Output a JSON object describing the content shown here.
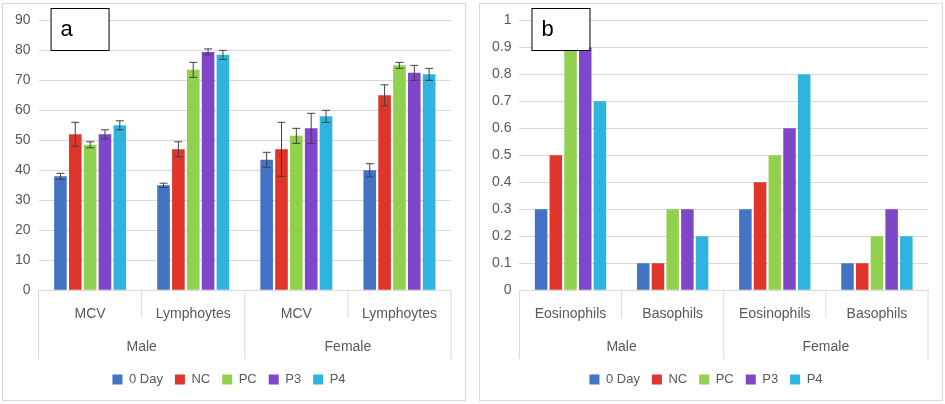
{
  "chart_data": [
    {
      "type": "bar",
      "title": "a",
      "categories": [
        "MCV",
        "Lymphoytes",
        "MCV",
        "Lymphoytes"
      ],
      "groups": [
        "Male",
        "Male",
        "Female",
        "Female"
      ],
      "series": [
        {
          "name": "0 Day",
          "color": "#4472c4",
          "values": [
            38,
            35,
            43.5,
            40
          ],
          "errors": [
            1,
            0.7,
            2.5,
            2.2
          ]
        },
        {
          "name": "NC",
          "color": "#e0352b",
          "values": [
            52,
            47,
            47,
            65
          ],
          "errors": [
            4,
            2.5,
            9,
            3.5
          ]
        },
        {
          "name": "PC",
          "color": "#92d050",
          "values": [
            48.5,
            73.5,
            51.5,
            75
          ],
          "errors": [
            1,
            2.5,
            2.5,
            1
          ]
        },
        {
          "name": "P3",
          "color": "#7e47c9",
          "values": [
            52,
            79.5,
            54,
            72.5
          ],
          "errors": [
            1.5,
            1,
            5,
            2.5
          ]
        },
        {
          "name": "P4",
          "color": "#2fb4e0",
          "values": [
            55,
            78.5,
            58,
            72
          ],
          "errors": [
            1.5,
            1.5,
            2,
            2
          ]
        }
      ],
      "ylim": [
        0,
        90
      ],
      "yticks": [
        0,
        10,
        20,
        30,
        40,
        50,
        60,
        70,
        80,
        90
      ],
      "grid": true,
      "legend": "bottom"
    },
    {
      "type": "bar",
      "title": "b",
      "categories": [
        "Eosinophils",
        "Basophils",
        "Eosinophils",
        "Basophils"
      ],
      "groups": [
        "Male",
        "Male",
        "Female",
        "Female"
      ],
      "series": [
        {
          "name": "0 Day",
          "color": "#4472c4",
          "values": [
            0.3,
            0.1,
            0.3,
            0.1
          ]
        },
        {
          "name": "NC",
          "color": "#e0352b",
          "values": [
            0.5,
            0.1,
            0.4,
            0.1
          ]
        },
        {
          "name": "PC",
          "color": "#92d050",
          "values": [
            0.9,
            0.3,
            0.5,
            0.2
          ]
        },
        {
          "name": "P3",
          "color": "#7e47c9",
          "values": [
            0.9,
            0.3,
            0.6,
            0.3
          ]
        },
        {
          "name": "P4",
          "color": "#2fb4e0",
          "values": [
            0.7,
            0.2,
            0.8,
            0.2
          ]
        }
      ],
      "ylim": [
        0,
        1
      ],
      "yticks": [
        0,
        0.1,
        0.2,
        0.3,
        0.4,
        0.5,
        0.6,
        0.7,
        0.8,
        0.9,
        1
      ],
      "grid": true,
      "legend": "bottom"
    }
  ]
}
